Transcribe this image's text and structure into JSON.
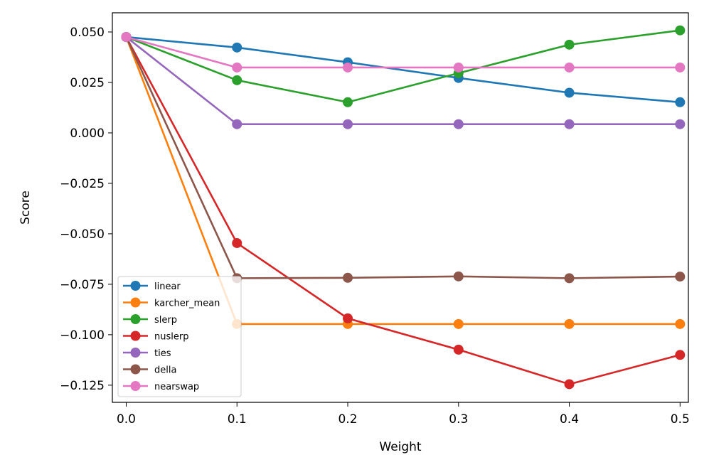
{
  "chart_data": {
    "type": "line",
    "xlabel": "Weight",
    "ylabel": "Score",
    "x": [
      0.0,
      0.1,
      0.2,
      0.3,
      0.4,
      0.5
    ],
    "xlim": [
      -0.0125,
      0.5075
    ],
    "ylim": [
      -0.1335,
      0.0595
    ],
    "xticks": [
      0.0,
      0.1,
      0.2,
      0.3,
      0.4,
      0.5
    ],
    "xtick_labels": [
      "0.0",
      "0.1",
      "0.2",
      "0.3",
      "0.4",
      "0.5"
    ],
    "yticks": [
      0.05,
      0.025,
      0.0,
      -0.025,
      -0.05,
      -0.075,
      -0.1,
      -0.125
    ],
    "ytick_labels": [
      "0.050",
      "0.025",
      "0.000",
      "−0.025",
      "−0.050",
      "−0.075",
      "−0.100",
      "−0.125"
    ],
    "grid": false,
    "legend_position": "lower-left",
    "series": [
      {
        "name": "linear",
        "color": "#1f77b4",
        "values": [
          0.0475,
          0.0423,
          0.035,
          0.0272,
          0.0199,
          0.0152
        ]
      },
      {
        "name": "karcher_mean",
        "color": "#ff7f0e",
        "values": [
          0.0475,
          -0.0947,
          -0.0947,
          -0.0947,
          -0.0947,
          -0.0947
        ]
      },
      {
        "name": "slerp",
        "color": "#2ca02c",
        "values": [
          0.0475,
          0.0261,
          0.0152,
          0.0296,
          0.0437,
          0.0508
        ]
      },
      {
        "name": "nuslerp",
        "color": "#d62728",
        "values": [
          0.0475,
          -0.0546,
          -0.0919,
          -0.1074,
          -0.1245,
          -0.11
        ]
      },
      {
        "name": "ties",
        "color": "#9467bd",
        "values": [
          0.0475,
          0.0043,
          0.0043,
          0.0043,
          0.0043,
          0.0043
        ]
      },
      {
        "name": "della",
        "color": "#8c564b",
        "values": [
          0.0475,
          -0.072,
          -0.0718,
          -0.0711,
          -0.072,
          -0.0712
        ]
      },
      {
        "name": "nearswap",
        "color": "#e377c2",
        "values": [
          0.0475,
          0.0324,
          0.0324,
          0.0324,
          0.0324,
          0.0324
        ]
      }
    ]
  }
}
